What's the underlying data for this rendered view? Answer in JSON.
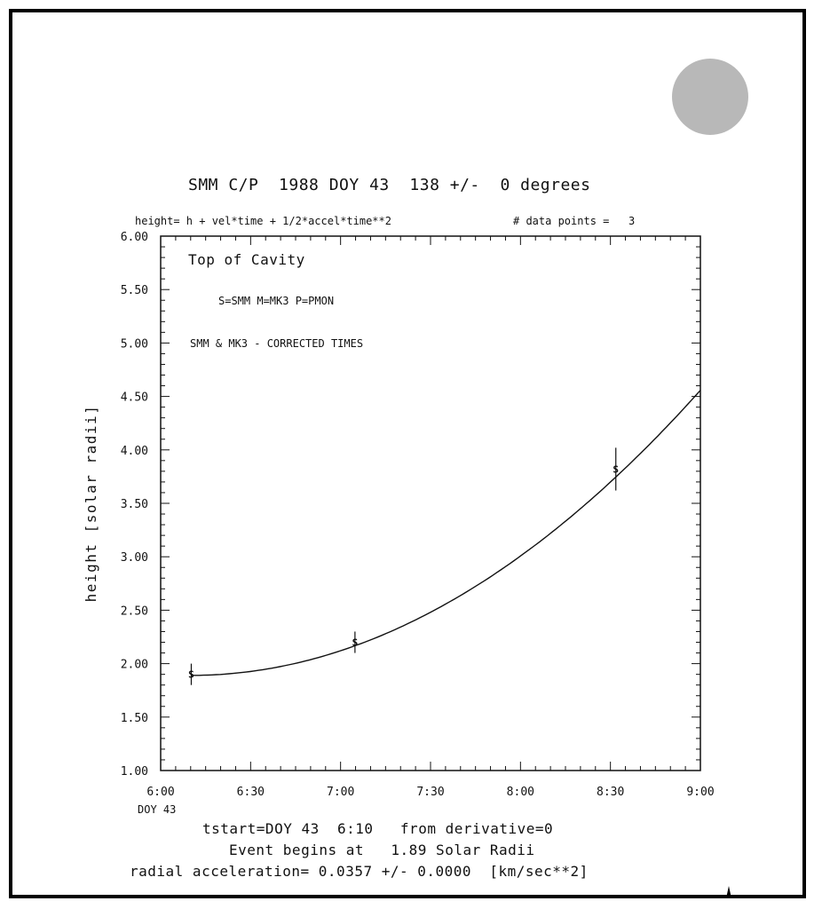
{
  "header": {
    "title": "SMM C/P  1988 DOY 43  138 +/-  0 degrees",
    "model": "height= h + vel*time + 1/2*accel*time**2",
    "points": "# data points =   3"
  },
  "footer": {
    "line1": "tstart=DOY 43  6:10   from derivative=0",
    "line2": "Event begins at   1.89 Solar Radii",
    "line3": "radial acceleration= 0.0357 +/- 0.0000  [km/sec**2]"
  },
  "chart_data": {
    "type": "scatter",
    "ylabel": "height [solar radii]",
    "xlim": [
      6.0,
      9.0
    ],
    "ylim": [
      1.0,
      6.0
    ],
    "x_ticks": [
      6.0,
      6.5,
      7.0,
      7.5,
      8.0,
      8.5,
      9.0
    ],
    "x_tick_labels": [
      "6:00",
      "6:30",
      "7:00",
      "7:30",
      "8:00",
      "8:30",
      "9:00"
    ],
    "x_sublabel": "DOY 43",
    "y_ticks": [
      1.0,
      1.5,
      2.0,
      2.5,
      3.0,
      3.5,
      4.0,
      4.5,
      5.0,
      5.5,
      6.0
    ],
    "y_tick_labels": [
      "1.00",
      "1.50",
      "2.00",
      "2.50",
      "3.00",
      "3.50",
      "4.00",
      "4.50",
      "5.00",
      "5.50",
      "6.00"
    ],
    "annotations": [
      "Top of Cavity",
      "S=SMM  M=MK3  P=PMON",
      "SMM & MK3 - CORRECTED TIMES"
    ],
    "points": [
      {
        "x": 6.17,
        "y": 1.9,
        "err": 0.1,
        "marker": "S"
      },
      {
        "x": 7.08,
        "y": 2.2,
        "err": 0.1,
        "marker": "S"
      },
      {
        "x": 8.53,
        "y": 3.82,
        "err": 0.2,
        "marker": "S"
      }
    ],
    "fit": {
      "t0": 6.167,
      "h0": 1.89,
      "a": 0.0357,
      "units_a": "km/sec**2"
    }
  }
}
